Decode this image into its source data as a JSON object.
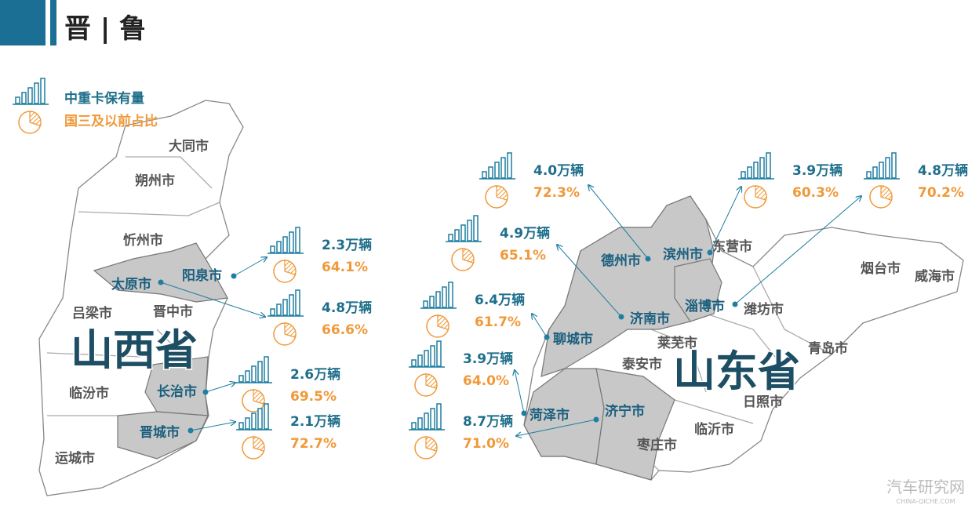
{
  "header": {
    "title": "晋 | 鲁"
  },
  "legend": {
    "count": "中重卡保有量",
    "share": "国三及以前占比"
  },
  "provinces": [
    "山西省",
    "山东省"
  ],
  "highlighted_cities": [
    {
      "name": "阳泉市",
      "count": "2.3万辆",
      "share": "64.1%"
    },
    {
      "name": "太原市",
      "count": "4.8万辆",
      "share": "66.6%"
    },
    {
      "name": "长治市",
      "count": "2.6万辆",
      "share": "69.5%"
    },
    {
      "name": "晋城市",
      "count": "2.1万辆",
      "share": "72.7%"
    },
    {
      "name": "德州市",
      "count": "4.0万辆",
      "share": "72.3%"
    },
    {
      "name": "济南市",
      "count": "4.9万辆",
      "share": "65.1%"
    },
    {
      "name": "聊城市",
      "count": "6.4万辆",
      "share": "61.7%"
    },
    {
      "name": "菏泽市",
      "count": "3.9万辆",
      "share": "64.0%"
    },
    {
      "name": "济宁市",
      "count": "8.7万辆",
      "share": "71.0%"
    },
    {
      "name": "滨州市",
      "count": "3.9万辆",
      "share": "60.3%"
    },
    {
      "name": "淄博市",
      "count": "4.8万辆",
      "share": "70.2%"
    }
  ],
  "other_cities": [
    "大同市",
    "朔州市",
    "忻州市",
    "吕梁市",
    "晋中市",
    "临汾市",
    "运城市",
    "东营市",
    "烟台市",
    "威海市",
    "潍坊市",
    "青岛市",
    "莱芜市",
    "泰安市",
    "日照市",
    "临沂市",
    "枣庄市"
  ],
  "watermark": {
    "name": "汽车研究网",
    "url": "CHINA-QICHE.COM"
  }
}
